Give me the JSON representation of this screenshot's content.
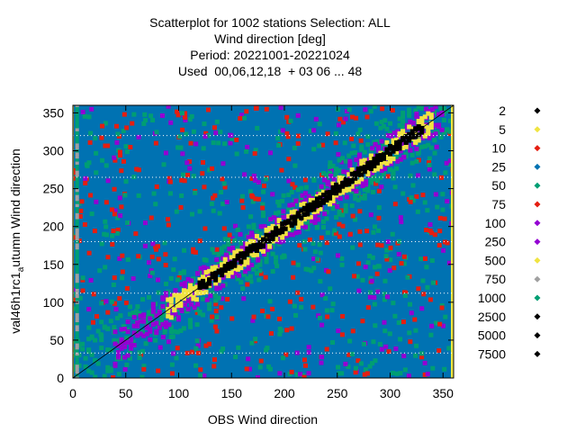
{
  "title_lines": [
    "Scatterplot for 1002 stations Selection: ALL",
    "Wind direction [deg]",
    "Period: 20221001-20221024",
    "Used  00,06,12,18  + 03 06 ... 48"
  ],
  "chart_data": {
    "type": "scatter",
    "title": "Scatterplot for 1002 stations Selection: ALL",
    "subtitle": [
      "Wind direction [deg]",
      "Period: 20221001-20221024",
      "Used  00,06,12,18  + 03 06 ... 48"
    ],
    "xlabel": "OBS Wind direction",
    "ylabel_main": "val46h1rc1",
    "ylabel_sub": "a",
    "ylabel_rest": "utumn Wind direction",
    "xlim": [
      0,
      360
    ],
    "ylim": [
      0,
      360
    ],
    "xticks": [
      0,
      50,
      100,
      150,
      200,
      250,
      300,
      350
    ],
    "yticks": [
      0,
      50,
      100,
      150,
      200,
      250,
      300,
      350
    ],
    "grid_lines_y": [
      33,
      112,
      180,
      265,
      320
    ],
    "legend_position": "right",
    "series": [
      {
        "name": "2",
        "color": "#000000"
      },
      {
        "name": "5",
        "color": "#f0e442"
      },
      {
        "name": "10",
        "color": "#e51e10"
      },
      {
        "name": "25",
        "color": "#0072b2"
      },
      {
        "name": "50",
        "color": "#009e73"
      },
      {
        "name": "75",
        "color": "#e51e10"
      },
      {
        "name": "100",
        "color": "#9400d3"
      },
      {
        "name": "250",
        "color": "#9400d3"
      },
      {
        "name": "500",
        "color": "#f0e442"
      },
      {
        "name": "750",
        "color": "#a0a0a0"
      },
      {
        "name": "1000",
        "color": "#009e73"
      },
      {
        "name": "2500",
        "color": "#000000"
      },
      {
        "name": "5000",
        "color": "#000000"
      },
      {
        "name": "7500",
        "color": "#000000"
      }
    ],
    "density_bands": [
      {
        "offset_max": 6,
        "color": "#000000",
        "range": [
          120,
          330
        ]
      },
      {
        "offset_max": 14,
        "color": "#f0e442",
        "range": [
          90,
          340
        ]
      },
      {
        "offset_max": 24,
        "color": "#9400d3",
        "range": [
          40,
          350
        ]
      },
      {
        "offset_max": 40,
        "color": "#009e73",
        "range": [
          0,
          360
        ]
      },
      {
        "offset_max": 360,
        "color": "#0072b2",
        "range": [
          0,
          360
        ]
      }
    ]
  }
}
